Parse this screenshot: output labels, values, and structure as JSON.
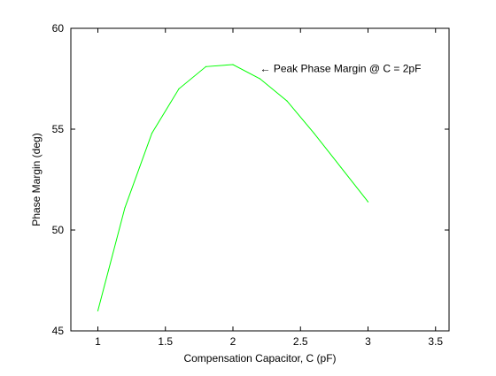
{
  "chart_data": {
    "type": "line",
    "title": "",
    "xlabel": "Compensation Capacitor, C (pF)",
    "ylabel": "Phase Margin (deg)",
    "xlim": [
      0.8,
      3.6
    ],
    "ylim": [
      45,
      60
    ],
    "xticks": [
      1,
      1.5,
      2,
      2.5,
      3,
      3.5
    ],
    "xtick_labels": [
      "1",
      "1.5",
      "2",
      "2.5",
      "3",
      "3.5"
    ],
    "yticks": [
      45,
      50,
      55,
      60
    ],
    "ytick_labels": [
      "45",
      "50",
      "55",
      "60"
    ],
    "grid": false,
    "legend": "none",
    "series": [
      {
        "color": "#00ff00",
        "x": [
          1.0,
          1.2,
          1.4,
          1.6,
          1.8,
          2.0,
          2.2,
          2.4,
          2.6,
          2.8,
          3.0
        ],
        "y": [
          46.0,
          51.1,
          54.8,
          57.0,
          58.1,
          58.2,
          57.5,
          56.4,
          54.8,
          53.1,
          51.4
        ]
      }
    ],
    "annotations": [
      {
        "text": "← Peak Phase Margin @ C = 2pF",
        "x": 2.2,
        "y": 58.0
      }
    ],
    "colors": {
      "axis": "#000000",
      "background": "#ffffff"
    }
  }
}
